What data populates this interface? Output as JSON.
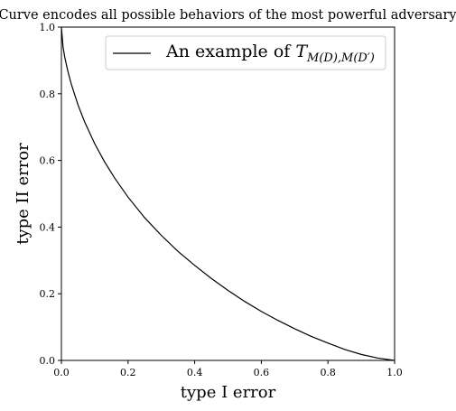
{
  "chart_data": {
    "type": "line",
    "title": "Curve encodes all possible behaviors of the most powerful adversary",
    "xlabel": "type I error",
    "ylabel": "type II error",
    "xlim": [
      0.0,
      1.0
    ],
    "ylim": [
      0.0,
      1.0
    ],
    "xticks": [
      "0.0",
      "0.2",
      "0.4",
      "0.6",
      "0.8",
      "1.0"
    ],
    "yticks": [
      "0.0",
      "0.2",
      "0.4",
      "0.6",
      "0.8",
      "1.0"
    ],
    "grid": false,
    "legend_position": "top-right",
    "legend": {
      "prefix": "An example of ",
      "symbol": "T",
      "subscript": "M(D),M(D′)"
    },
    "series": [
      {
        "color": "#000000",
        "x": [
          0.0,
          0.005,
          0.01,
          0.02,
          0.03,
          0.05,
          0.07,
          0.1,
          0.13,
          0.16,
          0.2,
          0.25,
          0.3,
          0.35,
          0.4,
          0.45,
          0.5,
          0.55,
          0.6,
          0.65,
          0.7,
          0.75,
          0.8,
          0.85,
          0.9,
          0.95,
          1.0
        ],
        "values": [
          1.0,
          0.94,
          0.91,
          0.865,
          0.828,
          0.766,
          0.715,
          0.65,
          0.595,
          0.547,
          0.49,
          0.428,
          0.375,
          0.327,
          0.285,
          0.246,
          0.21,
          0.177,
          0.147,
          0.12,
          0.095,
          0.072,
          0.052,
          0.033,
          0.018,
          0.007,
          0.0
        ]
      }
    ]
  }
}
